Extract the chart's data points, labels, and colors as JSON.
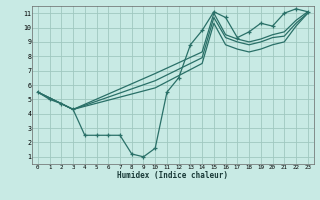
{
  "xlabel": "Humidex (Indice chaleur)",
  "background_color": "#c8eae4",
  "grid_color": "#a0c8c0",
  "line_color": "#2a7068",
  "xlim": [
    -0.5,
    23.5
  ],
  "ylim": [
    0.5,
    11.5
  ],
  "xticks": [
    0,
    1,
    2,
    3,
    4,
    5,
    6,
    7,
    8,
    9,
    10,
    11,
    12,
    13,
    14,
    15,
    16,
    17,
    18,
    19,
    20,
    21,
    22,
    23
  ],
  "yticks": [
    1,
    2,
    3,
    4,
    5,
    6,
    7,
    8,
    9,
    10,
    11
  ],
  "lines": [
    {
      "x": [
        0,
        1,
        2,
        3,
        4,
        5,
        6,
        7,
        8,
        9,
        10,
        11,
        12,
        13,
        14,
        15,
        16,
        17,
        18,
        19,
        20,
        21,
        22,
        23
      ],
      "y": [
        5.5,
        5.0,
        4.7,
        4.3,
        2.5,
        2.5,
        2.5,
        2.5,
        1.2,
        1.0,
        1.6,
        5.5,
        6.5,
        8.8,
        9.8,
        11.1,
        10.7,
        9.3,
        9.7,
        10.3,
        10.1,
        11.0,
        11.3,
        11.1
      ],
      "marker": true
    },
    {
      "x": [
        0,
        3,
        10,
        14,
        15,
        16,
        17,
        18,
        19,
        20,
        21,
        22,
        23
      ],
      "y": [
        5.5,
        4.3,
        6.8,
        8.3,
        11.0,
        9.5,
        9.2,
        9.0,
        9.2,
        9.5,
        9.7,
        10.5,
        11.1
      ],
      "marker": false
    },
    {
      "x": [
        0,
        3,
        10,
        14,
        15,
        16,
        17,
        18,
        19,
        20,
        21,
        22,
        23
      ],
      "y": [
        5.5,
        4.3,
        6.3,
        7.9,
        10.7,
        9.3,
        9.0,
        8.8,
        9.0,
        9.3,
        9.4,
        10.3,
        11.0
      ],
      "marker": false
    },
    {
      "x": [
        0,
        3,
        10,
        14,
        15,
        16,
        17,
        18,
        19,
        20,
        21,
        22,
        23
      ],
      "y": [
        5.5,
        4.3,
        5.8,
        7.5,
        10.3,
        8.8,
        8.5,
        8.3,
        8.5,
        8.8,
        9.0,
        10.1,
        11.0
      ],
      "marker": false
    }
  ]
}
